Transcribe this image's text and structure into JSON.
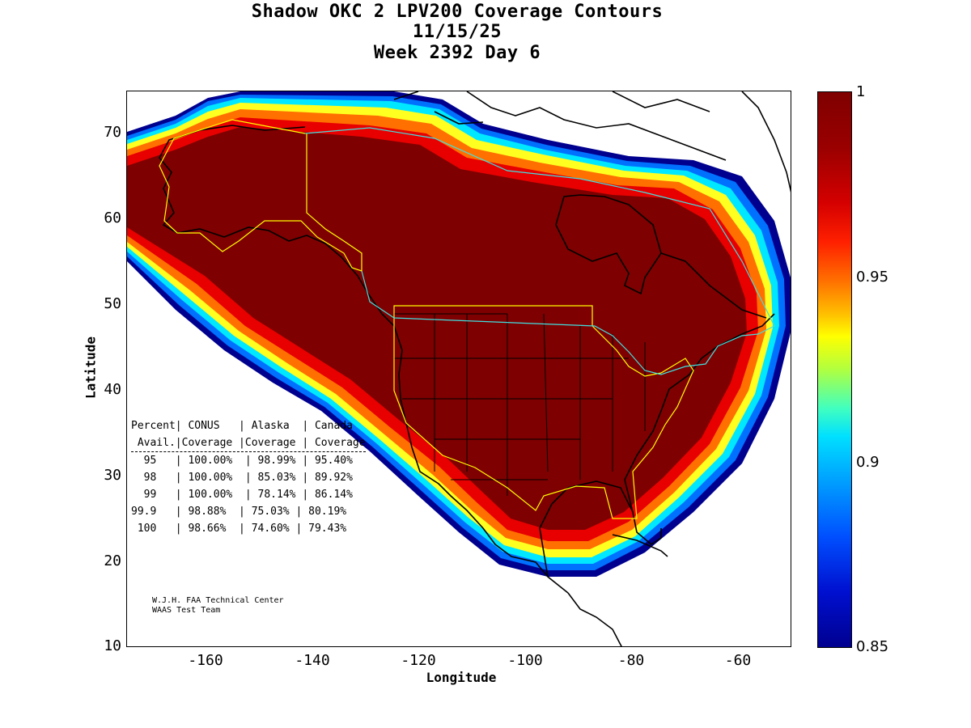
{
  "title": {
    "line1": "Shadow OKC 2 LPV200 Coverage Contours",
    "line2": "11/15/25",
    "line3": "Week 2392 Day 6"
  },
  "axes": {
    "xlabel": "Longitude",
    "ylabel": "Latitude",
    "xticks": [
      "-160",
      "-140",
      "-120",
      "-100",
      "-80",
      "-60"
    ],
    "yticks": [
      "70",
      "60",
      "50",
      "40",
      "30",
      "20",
      "10"
    ],
    "xlim": [
      -175,
      -50
    ],
    "ylim": [
      10,
      75
    ]
  },
  "colorbar": {
    "ticks": [
      "1",
      "0.95",
      "0.9",
      "0.85"
    ],
    "range": [
      0.85,
      1
    ]
  },
  "stats_table": {
    "header1": "Percent| CONUS   | Alaska  | Canada",
    "header2": " Avail.|Coverage |Coverage | Coverage",
    "rows": [
      "  95   | 100.00%  | 98.99% | 95.40%",
      "  98   | 100.00%  | 85.03% | 89.92%",
      "  99   | 100.00%  | 78.14% | 86.14%",
      "99.9   | 98.88%  | 75.03% | 80.19%",
      " 100   | 98.66%  | 74.60% | 79.43%"
    ]
  },
  "credit": {
    "line1": "W.J.H. FAA Technical Center",
    "line2": "WAAS Test Team"
  },
  "colors": {
    "core": "#7f0000",
    "boundary_yellow": "#ffff00",
    "boundary_cyan": "#40e0e0",
    "coast": "#000000"
  }
}
